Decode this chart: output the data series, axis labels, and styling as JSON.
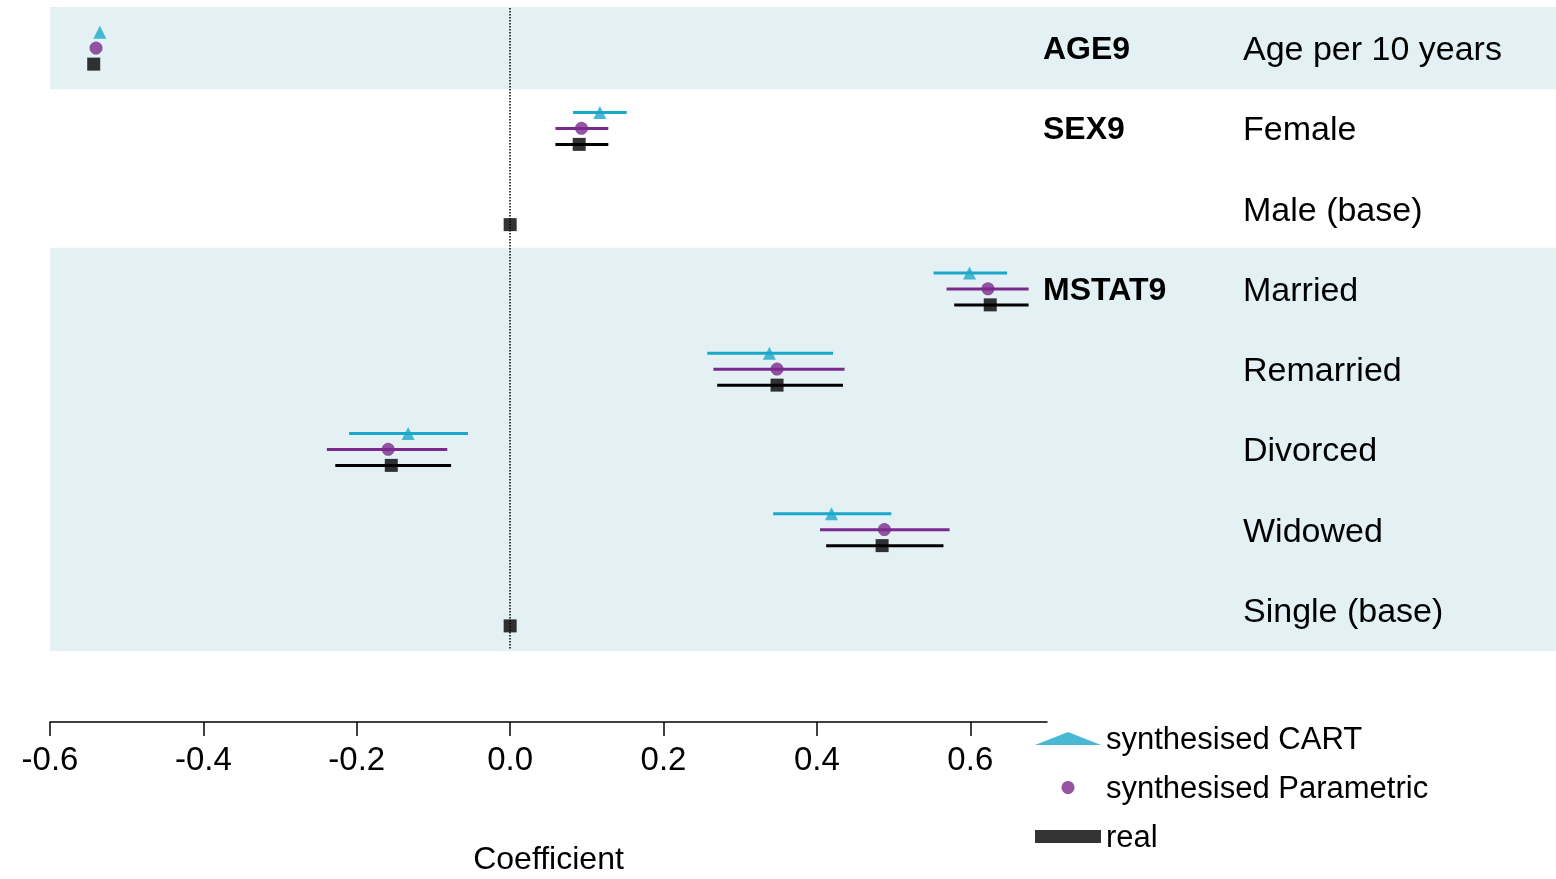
{
  "chart_data": {
    "type": "scatter",
    "orientation": "horizontal",
    "xlabel": "Coefficient",
    "categories": [
      "Age per 10 years",
      "Female",
      "Male (base)",
      "Married",
      "Remarried",
      "Divorced",
      "Widowed",
      "Single (base)"
    ],
    "y2_categories": [
      "AGE9",
      "SEX9",
      null,
      "MSTAT9",
      null,
      null,
      null,
      null
    ],
    "series": [
      {
        "name": "synthesised CART",
        "color": "#1aa7c9",
        "marker": "triangle",
        "values": [
          -0.535,
          0.117,
          null,
          0.599,
          0.338,
          -0.133,
          0.419,
          null
        ],
        "errors": [
          null,
          [
            0.082,
            0.152
          ],
          null,
          [
            0.552,
            0.648
          ],
          [
            0.257,
            0.421
          ],
          [
            -0.21,
            -0.055
          ],
          [
            0.343,
            0.497
          ],
          null
        ]
      },
      {
        "name": "synthesised Parametric",
        "color": "#7a2a8c",
        "marker": "circle",
        "values": [
          -0.54,
          0.093,
          null,
          0.623,
          0.348,
          -0.159,
          0.488,
          null
        ],
        "errors": [
          null,
          [
            0.059,
            0.128
          ],
          null,
          [
            0.569,
            0.676
          ],
          [
            0.265,
            0.436
          ],
          [
            -0.239,
            -0.082
          ],
          [
            0.404,
            0.573
          ],
          null
        ]
      },
      {
        "name": "real",
        "color": "#000000",
        "marker": "square",
        "values": [
          -0.543,
          0.09,
          0,
          0.626,
          0.348,
          -0.155,
          0.485,
          0
        ],
        "errors": [
          null,
          [
            0.059,
            0.128
          ],
          null,
          [
            0.579,
            0.676
          ],
          [
            0.27,
            0.434
          ],
          [
            -0.228,
            -0.077
          ],
          [
            0.412,
            0.565
          ],
          null
        ]
      }
    ],
    "xlim": [
      -0.6,
      0.7
    ],
    "xticks": [
      -0.6,
      -0.4,
      -0.2,
      {
        "value": 0,
        "label": "0.0"
      },
      0.2,
      0.4,
      0.6
    ],
    "ref_lines": [
      {
        "axis": "x",
        "value": 0,
        "line_style": "dotted",
        "color": "#000000"
      }
    ],
    "bands": [
      {
        "axis": "y",
        "from": "Age per 10 years",
        "to": "Age per 10 years",
        "color": "#e3f1f4"
      },
      {
        "axis": "y",
        "from": "Married",
        "to": "Single (base)",
        "color": "#e3f1f4"
      }
    ],
    "grid": false,
    "legend": "bottom right"
  }
}
